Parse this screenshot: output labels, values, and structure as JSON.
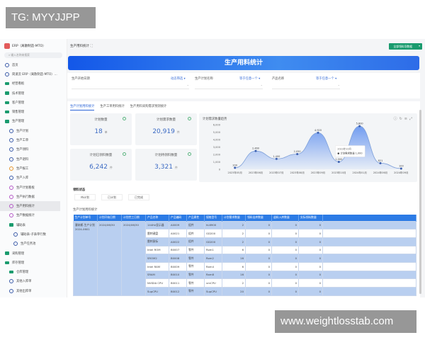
{
  "watermarks": {
    "top_left": "TG: MYYJJPP",
    "bottom_right": "www.weightlosstab.com"
  },
  "sidebar": {
    "app_title": "ERP（离散制造-MTO）",
    "search_placeholder": "输入名称来搜索",
    "items": [
      {
        "label": "首页",
        "icon": "home-icon",
        "level": 1
      },
      {
        "label": "简道云 ERP（离散制造-MTO）...",
        "icon": "info-icon",
        "level": 1
      },
      {
        "label": "经营看板",
        "icon": "folder-icon",
        "level": 1
      },
      {
        "label": "技术管理",
        "icon": "folder-icon",
        "level": 1
      },
      {
        "label": "客户管理",
        "icon": "folder-icon",
        "level": 1
      },
      {
        "label": "销售管理",
        "icon": "folder-icon",
        "level": 1
      },
      {
        "label": "生产管理",
        "icon": "folder-open-icon",
        "level": 1
      },
      {
        "label": "生产计划",
        "icon": "form-icon",
        "level": 2
      },
      {
        "label": "生产工单",
        "icon": "form-icon",
        "level": 2
      },
      {
        "label": "生产领料",
        "icon": "form-icon",
        "level": 2
      },
      {
        "label": "生产退料",
        "icon": "form-icon",
        "level": 2
      },
      {
        "label": "生产报工",
        "icon": "flow-icon",
        "level": 2
      },
      {
        "label": "生产入库",
        "icon": "form-icon",
        "level": 2
      },
      {
        "label": "生产计划看板",
        "icon": "dashboard-icon",
        "level": 2
      },
      {
        "label": "生产执行数据",
        "icon": "dashboard-icon",
        "level": 2
      },
      {
        "label": "生产用料统计",
        "icon": "dashboard-icon",
        "level": 2,
        "active": true
      },
      {
        "label": "生产数据统计",
        "icon": "dashboard-icon",
        "level": 2
      },
      {
        "label": "辅助表",
        "icon": "folder-icon",
        "level": 2
      },
      {
        "label": "辅助表-子表单行数",
        "icon": "form-icon",
        "level": 3
      },
      {
        "label": "生产任务池",
        "icon": "form-icon",
        "level": 3
      },
      {
        "label": "采购管理",
        "icon": "folder-icon",
        "level": 1
      },
      {
        "label": "库存管理",
        "icon": "folder-open-icon",
        "level": 1
      },
      {
        "label": "仓库管理",
        "icon": "folder-icon",
        "level": 2
      },
      {
        "label": "其他入库单",
        "icon": "form-icon",
        "level": 2
      },
      {
        "label": "其他出库单",
        "icon": "form-icon",
        "level": 2
      }
    ]
  },
  "header": {
    "breadcrumb": "生产用料统计",
    "action_button": "全部领料导数据",
    "banner_title": "生产用料统计"
  },
  "filters": [
    {
      "label": "生产开始日期",
      "operator": "动态筛选",
      "value": ""
    },
    {
      "label": "生产计划名称",
      "operator": "等于任意一个",
      "value": ""
    },
    {
      "label": "产品名称",
      "operator": "等于任意一个",
      "value": ""
    }
  ],
  "tabs": [
    {
      "label": "生产计划用料统计",
      "active": true
    },
    {
      "label": "生产工单用料统计"
    },
    {
      "label": "生产用料采购需求预测统计"
    }
  ],
  "kpis": [
    {
      "title": "计划数量",
      "value": "18",
      "unit": "单"
    },
    {
      "title": "计划需求数量",
      "value": "20,919",
      "unit": "件"
    },
    {
      "title": "计划已领料数量",
      "value": "6,242",
      "unit": "件"
    },
    {
      "title": "计划待领料数量",
      "value": "3,321",
      "unit": "件"
    }
  ],
  "chart_data": {
    "type": "area",
    "title": "计划需求数量趋势",
    "categories": [
      "2023年05月",
      "2023年06月",
      "2023年07月",
      "2023年08月",
      "2023年09月",
      "2023年10月",
      "2024年01月",
      "2024年06月",
      "2024年09月"
    ],
    "values": [
      200,
      2460,
      1400,
      2050,
      4920,
      1000,
      5800,
      821,
      100
    ],
    "ylim": [
      0,
      6000
    ],
    "yticks": [
      "0",
      "1,000",
      "2,000",
      "3,000",
      "4,000",
      "5,000",
      "6,000"
    ],
    "tooltip": {
      "title": "2023年10月",
      "series": "计划需求数量",
      "value": "1,000"
    },
    "color": "#5b8def"
  },
  "status": {
    "title": "领料状态",
    "options": [
      "待计划",
      "已计划",
      "已完成"
    ]
  },
  "table": {
    "title": "生产计划用料统计",
    "columns": [
      "生产计划单号",
      "计划开始日期",
      "计划完工日期",
      "产品名称",
      "产品编码",
      "产品属性",
      "规格型号",
      "计划需求数量",
      "领料出库数量",
      "退料入库数量",
      "实际领料数量"
    ],
    "group": {
      "plan_no": "塞纳斯-生产计划2024-0601",
      "start": "2024/06/30",
      "end": "2024/06/30"
    },
    "rows": [
      [
        "144Hz显示器",
        "A0009",
        "组件",
        "hL6900",
        "2",
        "0",
        "0",
        "0"
      ],
      [
        "雷刺键盘",
        "A0021",
        "组件",
        "GD200",
        "2",
        "0",
        "0",
        "0"
      ],
      [
        "雷刺鼠标",
        "A0022",
        "组件",
        "GD200",
        "2",
        "0",
        "0",
        "0"
      ],
      [
        "Intel ROM",
        "B0007",
        "零件",
        "Rom1",
        "6",
        "0",
        "0",
        "0"
      ],
      [
        "SROM2",
        "B0008",
        "零件",
        "Rom2",
        "16",
        "0",
        "0",
        "0"
      ],
      [
        "Intel RAM",
        "B0009",
        "零件",
        "Ram4",
        "6",
        "0",
        "0",
        "0"
      ],
      [
        "SRAM",
        "B0010",
        "零件",
        "Ram8",
        "16",
        "0",
        "0",
        "0"
      ],
      [
        "NVIDIA CPU",
        "B0011",
        "零件",
        "vmCPU",
        "2",
        "0",
        "0",
        "0"
      ],
      [
        "SupCPU",
        "B0012",
        "零件",
        "SupCPU",
        "20",
        "0",
        "0",
        "0"
      ]
    ]
  }
}
